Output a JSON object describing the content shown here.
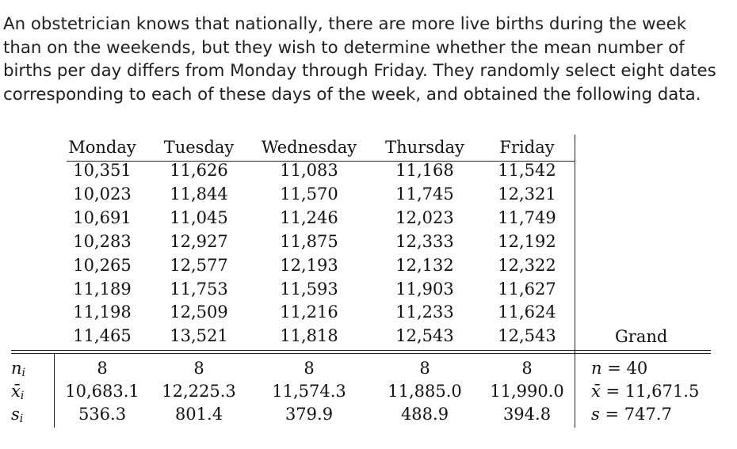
{
  "problem_lines": [
    "An obstetrician knows that nationally, there are more live births during the week",
    "than on the weekends, but they wish to determine whether the mean number of",
    "births per day differs from Monday through Friday.  They randomly select eight dates",
    "corresponding to each of these days of the week, and obtained the following data."
  ],
  "table": {
    "columns": [
      "Monday",
      "Tuesday",
      "Wednesday",
      "Thursday",
      "Friday"
    ],
    "rows": [
      [
        "10,351",
        "11,626",
        "11,083",
        "11,168",
        "11,542"
      ],
      [
        "10,023",
        "11,844",
        "11,570",
        "11,745",
        "12,321"
      ],
      [
        "10,691",
        "11,045",
        "11,246",
        "12,023",
        "11,749"
      ],
      [
        "10,283",
        "12,927",
        "11,875",
        "12,333",
        "12,192"
      ],
      [
        "10,265",
        "12,577",
        "12,193",
        "12,132",
        "12,322"
      ],
      [
        "11,189",
        "11,753",
        "11,593",
        "11,903",
        "11,627"
      ],
      [
        "11,198",
        "12,509",
        "11,216",
        "11,233",
        "11,624"
      ],
      [
        "11,465",
        "13,521",
        "11,818",
        "12,543",
        "12,543"
      ]
    ],
    "grand_label": "Grand",
    "summary": {
      "n_label": "n",
      "n_sub": "i",
      "xbar_label": "x̄",
      "xbar_sub": "i",
      "s_label": "s",
      "s_sub": "i",
      "n": [
        "8",
        "8",
        "8",
        "8",
        "8"
      ],
      "mean": [
        "10,683.1",
        "12,225.3",
        "11,574.3",
        "11,885.0",
        "11,990.0"
      ],
      "sd": [
        "536.3",
        "801.4",
        "379.9",
        "488.9",
        "394.8"
      ]
    },
    "grand": {
      "n_symbol": "n",
      "n_value": " = 40",
      "mean_symbol": "x̄",
      "mean_value": " = 11,671.5",
      "sd_symbol": "s",
      "sd_value": " = 747.7"
    }
  }
}
